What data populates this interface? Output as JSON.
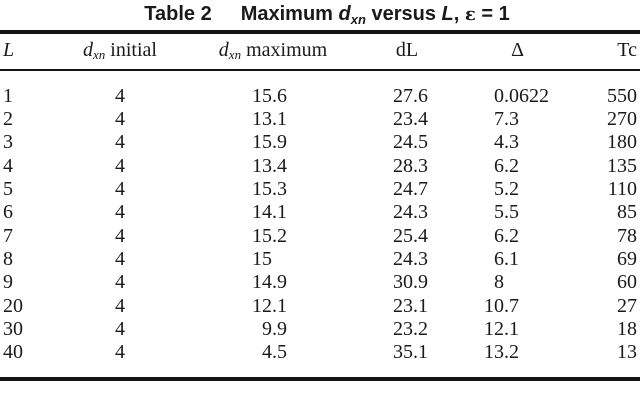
{
  "colors": {
    "text": "#1a1a1a",
    "rule": "#151515",
    "background": "#ffffff"
  },
  "caption": {
    "label": "Table 2",
    "pre": "Maximum ",
    "var_d": "d",
    "var_d_sub": "xn",
    "mid": " versus ",
    "var_L": "L",
    "sep": ", ",
    "epsilon": "ε",
    "eq": " = 1"
  },
  "columns": {
    "L": {
      "label": "L"
    },
    "initial": {
      "var": "d",
      "sub": "xn",
      "rest": "initial"
    },
    "max": {
      "var": "d",
      "sub": "xn",
      "rest": "maximum"
    },
    "dL": {
      "label": "dL"
    },
    "delta": {
      "label": "Δ"
    },
    "Tc": {
      "label": "Tc"
    }
  },
  "table": {
    "rows": [
      {
        "L": "1",
        "initial": "4",
        "max": "15.6",
        "dL": "27.6",
        "delta": "0.0622",
        "Tc": "550"
      },
      {
        "L": "2",
        "initial": "4",
        "max": "13.1",
        "dL": "23.4",
        "delta": "7.3",
        "Tc": "270"
      },
      {
        "L": "3",
        "initial": "4",
        "max": "15.9",
        "dL": "24.5",
        "delta": "4.3",
        "Tc": "180"
      },
      {
        "L": "4",
        "initial": "4",
        "max": "13.4",
        "dL": "28.3",
        "delta": "6.2",
        "Tc": "135"
      },
      {
        "L": "5",
        "initial": "4",
        "max": "15.3",
        "dL": "24.7",
        "delta": "5.2",
        "Tc": "110"
      },
      {
        "L": "6",
        "initial": "4",
        "max": "14.1",
        "dL": "24.3",
        "delta": "5.5",
        "Tc": "85"
      },
      {
        "L": "7",
        "initial": "4",
        "max": "15.2",
        "dL": "25.4",
        "delta": "6.2",
        "Tc": "78"
      },
      {
        "L": "8",
        "initial": "4",
        "max": "15",
        "dL": "24.3",
        "delta": "6.1",
        "Tc": "69"
      },
      {
        "L": "9",
        "initial": "4",
        "max": "14.9",
        "dL": "30.9",
        "delta": "8",
        "Tc": "60"
      },
      {
        "L": "20",
        "initial": "4",
        "max": "12.1",
        "dL": "23.1",
        "delta": "10.7",
        "Tc": "27"
      },
      {
        "L": "30",
        "initial": "4",
        "max": "9.9",
        "dL": "23.2",
        "delta": "12.1",
        "Tc": "18"
      },
      {
        "L": "40",
        "initial": "4",
        "max": "4.5",
        "dL": "35.1",
        "delta": "13.2",
        "Tc": "13"
      }
    ]
  }
}
